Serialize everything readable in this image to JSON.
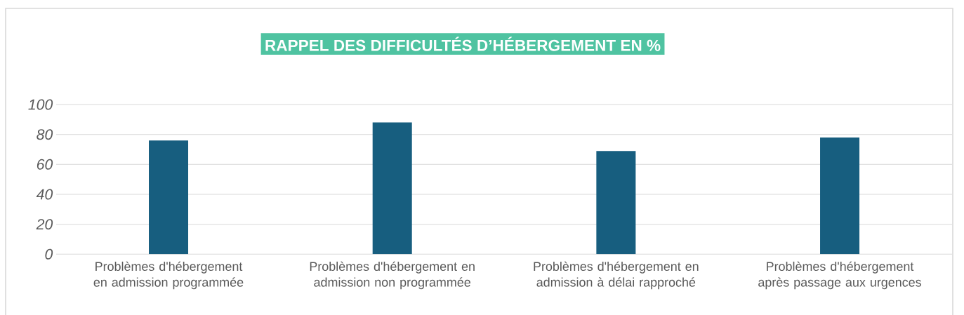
{
  "chart_data": {
    "type": "bar",
    "title": "RAPPEL DES DIFFICULTÉS D’HÉBERGEMENT EN %",
    "categories": [
      "Problèmes d'hébergement en admission programmée",
      "Problèmes d'hébergement en admission non programmée",
      "Problèmes d'hébergement en admission à délai rapproché",
      "Problèmes d'hébergement après passage aux urgences"
    ],
    "values": [
      76,
      88,
      69,
      78
    ],
    "color": "#175e7f",
    "ylim": [
      0,
      100
    ],
    "yticks": [
      0,
      20,
      40,
      60,
      80,
      100
    ],
    "grid": "y"
  }
}
